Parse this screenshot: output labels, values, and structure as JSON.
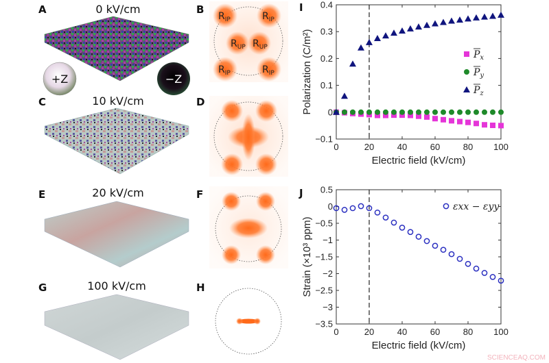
{
  "panels": {
    "A": {
      "label": "A",
      "title": "0 kV/cm"
    },
    "B": {
      "label": "B",
      "regions": [
        "RIP",
        "RIP",
        "RUP",
        "RUP",
        "RIP",
        "RIP"
      ]
    },
    "C": {
      "label": "C",
      "title": "10 kV/cm"
    },
    "D": {
      "label": "D"
    },
    "E": {
      "label": "E",
      "title": "20 kV/cm"
    },
    "F": {
      "label": "F"
    },
    "G": {
      "label": "G",
      "title": "100 kV/cm"
    },
    "H": {
      "label": "H"
    },
    "sphere_plus": "+Z",
    "sphere_minus": "−Z",
    "r_main": "R",
    "sub_ip": "IP",
    "sub_up": "UP"
  },
  "colors": {
    "px": "#e535d8",
    "py": "#1f8a2a",
    "pz": "#10157e",
    "strain": "#2a2fc0",
    "blob": "#ff6a1a"
  },
  "watermark": "SCIENCEAQ.COM",
  "chart_data": [
    {
      "panel": "I",
      "type": "scatter",
      "xlabel": "Electric field (kV/cm)",
      "ylabel": "Polarization (C/m²)",
      "xlim": [
        0,
        100
      ],
      "ylim": [
        -0.1,
        0.4
      ],
      "xticks": [
        "0",
        "20",
        "40",
        "60",
        "80",
        "100"
      ],
      "yticks": [
        "-0.1",
        "0",
        "0.1",
        "0.2",
        "0.3",
        "0.4"
      ],
      "vline": 20,
      "legend": "right",
      "x": [
        0,
        5,
        10,
        15,
        20,
        25,
        30,
        35,
        40,
        45,
        50,
        55,
        60,
        65,
        70,
        75,
        80,
        85,
        90,
        95,
        100
      ],
      "series": [
        {
          "name": "Px",
          "marker": "square",
          "values": [
            0,
            -0.002,
            -0.005,
            -0.007,
            -0.009,
            -0.012,
            -0.012,
            -0.011,
            -0.011,
            -0.012,
            -0.015,
            -0.018,
            -0.024,
            -0.028,
            -0.032,
            -0.035,
            -0.038,
            -0.042,
            -0.047,
            -0.049,
            -0.05
          ]
        },
        {
          "name": "Py",
          "marker": "circle",
          "values": [
            0,
            0,
            0,
            0,
            0,
            0,
            0,
            0,
            0,
            0,
            0,
            0,
            0,
            0,
            0,
            0,
            0,
            0,
            0,
            0,
            0
          ]
        },
        {
          "name": "Pz",
          "marker": "triangle",
          "values": [
            0,
            0.06,
            0.18,
            0.24,
            0.26,
            0.275,
            0.285,
            0.295,
            0.303,
            0.311,
            0.318,
            0.324,
            0.33,
            0.335,
            0.34,
            0.344,
            0.348,
            0.352,
            0.355,
            0.358,
            0.362
          ]
        }
      ]
    },
    {
      "panel": "J",
      "type": "scatter",
      "xlabel": "Electric field (kV/cm)",
      "ylabel": "Strain (×10³ ppm)",
      "xlim": [
        0,
        100
      ],
      "ylim": [
        -3.5,
        0.5
      ],
      "xticks": [
        "0",
        "20",
        "40",
        "60",
        "80",
        "100"
      ],
      "yticks": [
        "-3.5",
        "-3",
        "-2.5",
        "-2",
        "-1.5",
        "-1",
        "-0.5",
        "0",
        "0.5"
      ],
      "vline": 20,
      "legend": "top-right",
      "x": [
        0,
        5,
        10,
        15,
        20,
        25,
        30,
        35,
        40,
        45,
        50,
        55,
        60,
        65,
        70,
        75,
        80,
        85,
        90,
        95,
        100
      ],
      "series": [
        {
          "name": "εxx − εyy",
          "marker": "open-circle",
          "values": [
            -0.05,
            -0.1,
            -0.05,
            0.01,
            -0.05,
            -0.18,
            -0.33,
            -0.48,
            -0.63,
            -0.76,
            -0.9,
            -1.03,
            -1.17,
            -1.29,
            -1.42,
            -1.56,
            -1.71,
            -1.85,
            -1.98,
            -2.1,
            -2.21
          ]
        }
      ]
    }
  ]
}
